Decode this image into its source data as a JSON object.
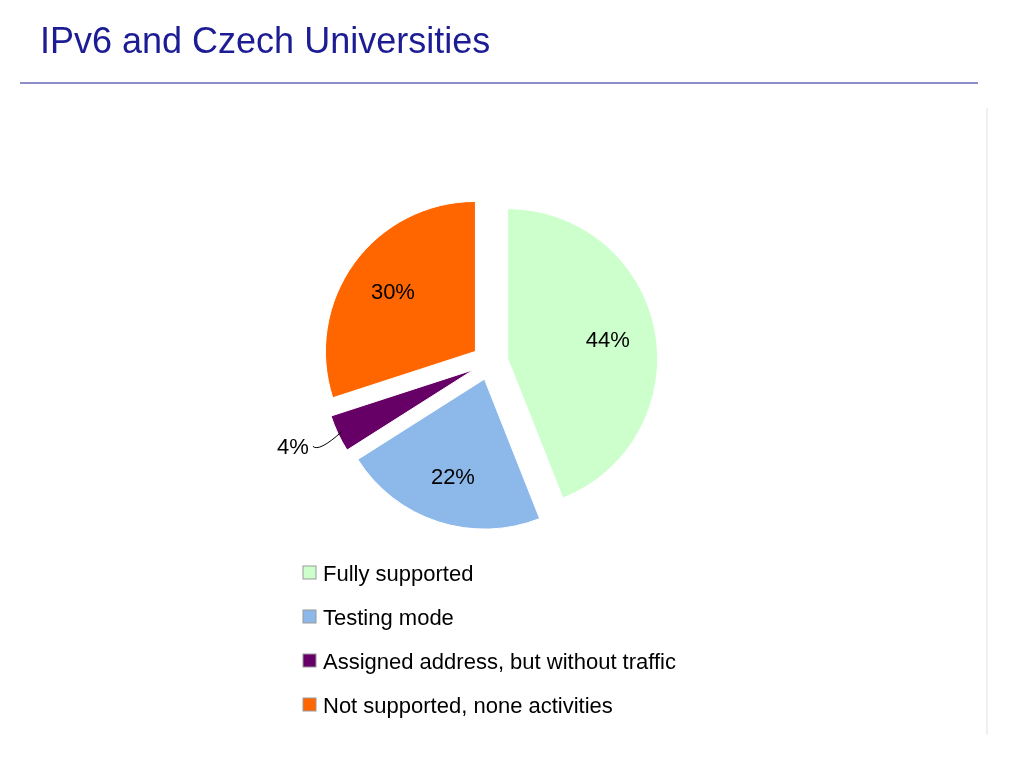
{
  "chart_data": {
    "type": "pie",
    "title": "IPv6 and Czech Universities",
    "categories": [
      "Fully supported",
      "Testing mode",
      "Assigned address, but without traffic",
      "Not supported, none activities"
    ],
    "values": [
      44,
      22,
      4,
      30
    ],
    "value_labels": [
      "44%",
      "22%",
      "4%",
      "30%"
    ],
    "colors": [
      "#ccffcc",
      "#8db9ea",
      "#660066",
      "#ff6600"
    ],
    "legend": "bottom"
  }
}
